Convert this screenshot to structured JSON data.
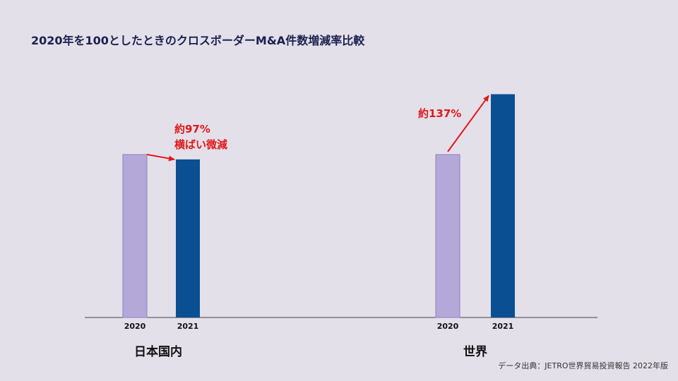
{
  "chart_data": {
    "type": "bar",
    "title": "2020年を100としたときのクロスボーダーM&A件数増減率比較",
    "categories": [
      "日本国内",
      "世界"
    ],
    "x": [
      "2020",
      "2021"
    ],
    "series": [
      {
        "name": "日本国内",
        "values": [
          100,
          97
        ]
      },
      {
        "name": "世界",
        "values": [
          100,
          137
        ]
      }
    ],
    "ylim": [
      0,
      150
    ],
    "xlabel": "",
    "ylabel": "",
    "annotations": [
      {
        "group": "日本国内",
        "lines": [
          "約97%",
          "横ばい微減"
        ]
      },
      {
        "group": "世界",
        "lines": [
          "約137%"
        ]
      }
    ],
    "source": "データ出典：JETRO世界貿易投資報告 2022年版",
    "colors": {
      "bar_2020": "#b4a8d8",
      "bar_2020_stroke": "#8e80c4",
      "bar_2021": "#0b4f93",
      "arrow": "#e01818",
      "axis": "#444444"
    }
  }
}
